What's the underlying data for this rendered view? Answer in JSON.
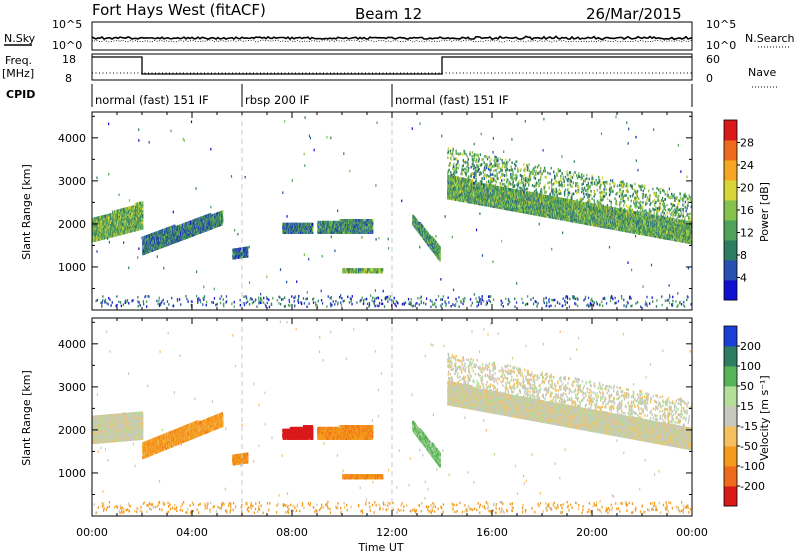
{
  "header": {
    "station": "Fort Hays West (fitACF)",
    "beam": "Beam 12",
    "date": "26/Mar/2015"
  },
  "strip": {
    "nsky_label": "N.Sky",
    "nsky_ticks": [
      "10^5",
      "10^0"
    ],
    "nsearch_label": "N.Search",
    "nsearch_ticks": [
      "10^5",
      "10^0"
    ],
    "freq_label": "Freq.",
    "freq_unit": "[MHz]",
    "freq_ticks": [
      "18",
      "8"
    ],
    "nave_label": "Nave",
    "nave_ticks": [
      "60",
      "0"
    ],
    "cpid_label": "CPID",
    "cpid_segments": [
      {
        "label": "normal (fast) 151 IF",
        "start_h": 0,
        "end_h": 6
      },
      {
        "label": "rbsp 200 IF",
        "start_h": 6,
        "end_h": 12
      },
      {
        "label": "normal (fast) 151 IF",
        "start_h": 12,
        "end_h": 24
      }
    ],
    "freq_steps": [
      {
        "start_h": 0,
        "end_h": 2,
        "level": "high"
      },
      {
        "start_h": 2,
        "end_h": 14,
        "level": "low"
      },
      {
        "start_h": 14,
        "end_h": 24,
        "level": "high"
      }
    ]
  },
  "chart_data": [
    {
      "type": "heatmap",
      "panel": "power",
      "ylabel": "Slant Range [km]",
      "yticks": [
        1000,
        2000,
        3000,
        4000
      ],
      "ylim": [
        0,
        4600
      ],
      "colorbar_label": "Power [dB]",
      "colorbar_ticks": [
        4,
        8,
        12,
        16,
        20,
        24,
        28
      ],
      "colorbar_range": [
        0,
        32
      ],
      "colors": [
        "#1010d0",
        "#2a4fb3",
        "#2e7d62",
        "#4fa35a",
        "#86c24e",
        "#d9d43a",
        "#f5a623",
        "#ef6a1c",
        "#d91a1a"
      ],
      "echo_regions": [
        {
          "t_start": 0.0,
          "t_end": 2.0,
          "r_start": [
            1600,
            2100
          ],
          "r_end": [
            1900,
            2500
          ],
          "level": 14
        },
        {
          "t_start": 2.0,
          "t_end": 5.2,
          "r_start": [
            1300,
            1700
          ],
          "r_end": [
            2000,
            2300
          ],
          "level": 9
        },
        {
          "t_start": 5.6,
          "t_end": 6.2,
          "r_start": [
            1200,
            1400
          ],
          "r_end": [
            1250,
            1450
          ],
          "level": 8
        },
        {
          "t_start": 7.6,
          "t_end": 8.8,
          "r_start": [
            1800,
            2000
          ],
          "r_end": [
            1800,
            2000
          ],
          "level": 9
        },
        {
          "t_start": 9.0,
          "t_end": 11.2,
          "r_start": [
            1800,
            2050
          ],
          "r_end": [
            1800,
            2100
          ],
          "level": 10
        },
        {
          "t_start": 10.0,
          "t_end": 11.6,
          "r_start": [
            880,
            960
          ],
          "r_end": [
            880,
            960
          ],
          "level": 14
        },
        {
          "t_start": 12.8,
          "t_end": 13.9,
          "r_start": [
            2000,
            2200
          ],
          "r_end": [
            1150,
            1450
          ],
          "level": 11
        },
        {
          "t_start": 14.2,
          "t_end": 24.0,
          "r_start": [
            2600,
            3100
          ],
          "r_end": [
            1550,
            2000
          ],
          "level": 13
        }
      ]
    },
    {
      "type": "heatmap",
      "panel": "velocity",
      "ylabel": "Slant Range [km]",
      "xlabel": "Time UT",
      "yticks": [
        1000,
        2000,
        3000,
        4000
      ],
      "ylim": [
        0,
        4600
      ],
      "xticks": [
        "00:00",
        "04:00",
        "08:00",
        "12:00",
        "16:00",
        "20:00",
        "00:00"
      ],
      "xlim_h": [
        0,
        24
      ],
      "colorbar_label": "Velocity [m s⁻¹]",
      "colorbar_ticks": [
        200,
        100,
        50,
        15,
        -15,
        -50,
        -100,
        -200
      ],
      "colors": [
        "#1a3fd6",
        "#2e7d62",
        "#57b35a",
        "#b4de9a",
        "#c8c8c0",
        "#f5c060",
        "#f59a1c",
        "#ef6a1c",
        "#d91a1a"
      ],
      "echo_regions": [
        {
          "t_start": 0.0,
          "t_end": 2.0,
          "r_start": [
            1700,
            2300
          ],
          "r_end": [
            1800,
            2400
          ],
          "velocity": 0
        },
        {
          "t_start": 2.0,
          "t_end": 5.2,
          "r_start": [
            1350,
            1700
          ],
          "r_end": [
            2100,
            2400
          ],
          "velocity": -50
        },
        {
          "t_start": 5.6,
          "t_end": 6.2,
          "r_start": [
            1200,
            1400
          ],
          "r_end": [
            1250,
            1450
          ],
          "velocity": -60
        },
        {
          "t_start": 7.6,
          "t_end": 8.8,
          "r_start": [
            1800,
            2000
          ],
          "r_end": [
            1800,
            2100
          ],
          "velocity": -200
        },
        {
          "t_start": 9.0,
          "t_end": 11.2,
          "r_start": [
            1800,
            2050
          ],
          "r_end": [
            1800,
            2100
          ],
          "velocity": -60
        },
        {
          "t_start": 10.0,
          "t_end": 11.6,
          "r_start": [
            880,
            960
          ],
          "r_end": [
            880,
            960
          ],
          "velocity": -60
        },
        {
          "t_start": 12.8,
          "t_end": 13.9,
          "r_start": [
            2000,
            2200
          ],
          "r_end": [
            1150,
            1450
          ],
          "velocity": 40
        },
        {
          "t_start": 14.2,
          "t_end": 24.0,
          "r_start": [
            2600,
            3100
          ],
          "r_end": [
            1550,
            2000
          ],
          "velocity": 0
        }
      ]
    }
  ]
}
